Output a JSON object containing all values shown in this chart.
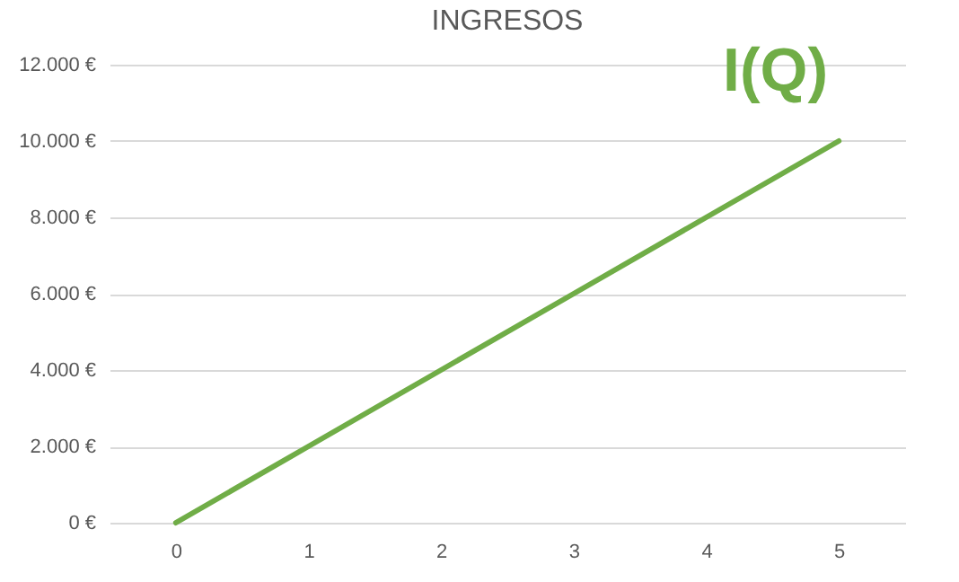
{
  "chart_data": {
    "type": "line",
    "title": "INGRESOS",
    "categories": [
      "0",
      "1",
      "2",
      "3",
      "4",
      "5"
    ],
    "series": [
      {
        "name": "I(Q)",
        "color": "#70ad47",
        "values": [
          0,
          2000,
          4000,
          6000,
          8000,
          10000
        ]
      }
    ],
    "ylim": [
      0,
      12000
    ],
    "yticks": [
      {
        "value": 0,
        "label": "0 €"
      },
      {
        "value": 2000,
        "label": "2.000 €"
      },
      {
        "value": 4000,
        "label": "4.000 €"
      },
      {
        "value": 6000,
        "label": "6.000 €"
      },
      {
        "value": 8000,
        "label": "8.000 €"
      },
      {
        "value": 10000,
        "label": "10.000 €"
      },
      {
        "value": 12000,
        "label": "12.000 €"
      }
    ],
    "grid": "y",
    "marker": "none",
    "line_style": "solid"
  }
}
